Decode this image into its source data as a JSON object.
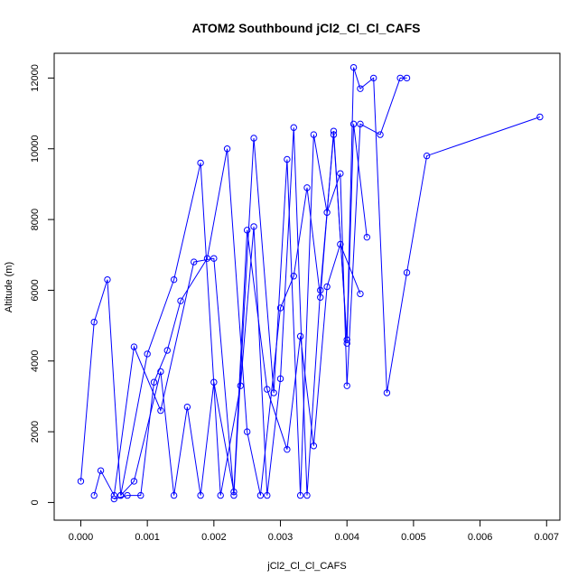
{
  "chart_data": {
    "type": "line",
    "title": "ATOM2 Southbound jCl2_Cl_Cl_CAFS",
    "xlabel": "jCl2_Cl_Cl_CAFS",
    "ylabel": "Altitude (m)",
    "xlim": [
      -0.0004,
      0.0072
    ],
    "ylim": [
      -500,
      12700
    ],
    "x_ticks": [
      0,
      0.001,
      0.002,
      0.003,
      0.004,
      0.005,
      0.006,
      0.007
    ],
    "x_tick_labels": [
      "0.000",
      "0.001",
      "0.002",
      "0.003",
      "0.004",
      "0.005",
      "0.006",
      "0.007"
    ],
    "y_ticks": [
      0,
      2000,
      4000,
      6000,
      8000,
      10000,
      12000
    ],
    "y_tick_labels": [
      "0",
      "2000",
      "4000",
      "6000",
      "8000",
      "10000",
      "12000"
    ],
    "grid": false,
    "legend": "none",
    "color": "#0000ff",
    "series": [
      {
        "x": [
          0.0,
          0.0002,
          0.0004,
          0.0006,
          0.001,
          0.0014,
          0.0018,
          0.0021,
          0.0024,
          0.0026,
          0.0028,
          0.003,
          0.0032,
          0.0034,
          0.0036,
          0.0038,
          0.004,
          0.0041,
          0.0042,
          0.0044,
          0.0046,
          0.0049,
          0.0052,
          0.0069
        ],
        "y": [
          600,
          5100,
          6300,
          200,
          4200,
          6300,
          9600,
          200,
          3300,
          7800,
          200,
          3500,
          10600,
          200,
          6000,
          10400,
          4600,
          12300,
          11700,
          12000,
          3100,
          6500,
          9800,
          10900
        ]
      },
      {
        "x": [
          0.0002,
          0.0003,
          0.0005,
          0.0008,
          0.0012,
          0.0017,
          0.002,
          0.0023,
          0.0026,
          0.0029,
          0.0031,
          0.0033,
          0.0035,
          0.0037,
          0.0039,
          0.004,
          0.0042,
          0.0045,
          0.0048,
          0.0049
        ],
        "y": [
          200,
          900,
          200,
          4400,
          2600,
          6800,
          6900,
          200,
          10300,
          3100,
          9700,
          200,
          10400,
          8200,
          9300,
          3300,
          10700,
          10400,
          12000,
          12000
        ]
      },
      {
        "x": [
          0.0005,
          0.0007,
          0.0009,
          0.0011,
          0.0013,
          0.0015,
          0.0019,
          0.0022,
          0.0025,
          0.0027,
          0.003,
          0.0032,
          0.0034,
          0.0036,
          0.0038,
          0.004,
          0.0041,
          0.0043
        ],
        "y": [
          100,
          200,
          200,
          3400,
          4300,
          5700,
          6900,
          10000,
          2000,
          200,
          5500,
          6400,
          8900,
          5800,
          10500,
          4500,
          10700,
          7500
        ]
      },
      {
        "x": [
          0.0006,
          0.0008,
          0.0012,
          0.0014,
          0.0016,
          0.0018,
          0.002,
          0.0023,
          0.0025,
          0.0028,
          0.0031,
          0.0033,
          0.0035,
          0.0037,
          0.0039,
          0.0042
        ],
        "y": [
          200,
          600,
          3700,
          200,
          2700,
          200,
          3400,
          300,
          7700,
          3200,
          1500,
          4700,
          1600,
          6100,
          7300,
          5900
        ]
      }
    ]
  }
}
